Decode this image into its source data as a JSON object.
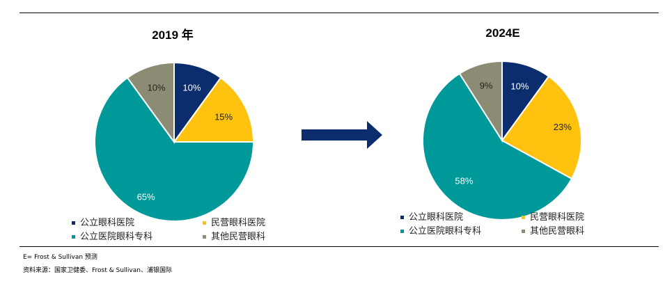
{
  "colors": {
    "public_hospital": "#0b2d6e",
    "private_hospital": "#ffc20e",
    "public_specialty": "#00999a",
    "other_private": "#8c8c74",
    "arrow": "#0b2d6e"
  },
  "legend": [
    {
      "key": "public_hospital",
      "label": "公立眼科医院"
    },
    {
      "key": "private_hospital",
      "label": "民营眼科医院"
    },
    {
      "key": "public_specialty",
      "label": "公立医院眼科专科"
    },
    {
      "key": "other_private",
      "label": "其他民营眼科"
    }
  ],
  "chart_data": [
    {
      "type": "pie",
      "title": "2019 年",
      "slices": [
        {
          "key": "public_hospital",
          "label": "公立眼科医院",
          "value": 10,
          "display": "10%"
        },
        {
          "key": "private_hospital",
          "label": "民营眼科医院",
          "value": 15,
          "display": "15%"
        },
        {
          "key": "public_specialty",
          "label": "公立医院眼科专科",
          "value": 65,
          "display": "65%"
        },
        {
          "key": "other_private",
          "label": "其他民营眼科",
          "value": 10,
          "display": "10%"
        }
      ]
    },
    {
      "type": "pie",
      "title": "2024E",
      "slices": [
        {
          "key": "public_hospital",
          "label": "公立眼科医院",
          "value": 10,
          "display": "10%"
        },
        {
          "key": "private_hospital",
          "label": "民营眼科医院",
          "value": 23,
          "display": "23%"
        },
        {
          "key": "public_specialty",
          "label": "公立医院眼科专科",
          "value": 58,
          "display": "58%"
        },
        {
          "key": "other_private",
          "label": "其他民营眼科",
          "value": 9,
          "display": "9%"
        }
      ]
    }
  ],
  "notes": {
    "forecast": "E= Frost & Sullivan  预测",
    "source": "资料来源：国家卫健委、Frost & Sullivan、浦银国际"
  }
}
